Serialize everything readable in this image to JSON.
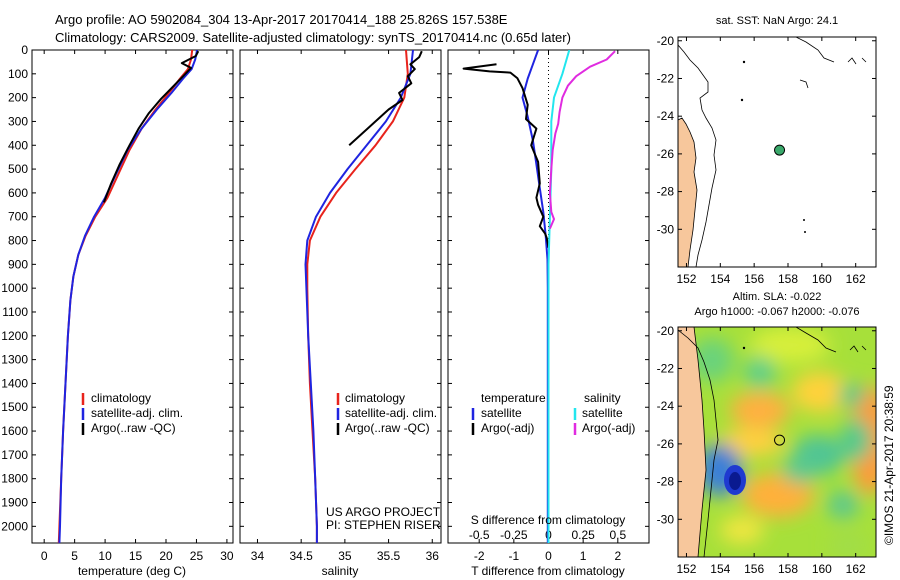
{
  "title": {
    "line1": "Argo profile: AO 5902084_304 13-Apr-2017 20170414_188 25.826S 157.538E",
    "line2": "Climatology: CARS2009. Satellite-adjusted climatology: synTS_20170414.nc (0.65d later)"
  },
  "credit": "©IMOS 21-Apr-2017 20:38:59",
  "colors": {
    "climatology": "#e8231c",
    "satellite": "#1f24e0",
    "argo": "#000000",
    "sat_salinity": "#22e6ee",
    "argo_salinity": "#e02be0",
    "land": "#f7c79c",
    "float_marker": "#3aa86b"
  },
  "chart_data": [
    {
      "type": "line",
      "id": "temperature",
      "xlabel": "temperature (deg C)",
      "xlim": [
        -2,
        31
      ],
      "ylim": [
        2070,
        0
      ],
      "xticks": [
        "0",
        "5",
        "10",
        "15",
        "20",
        "25",
        "30"
      ],
      "yticks": [
        "0",
        "100",
        "200",
        "300",
        "400",
        "500",
        "600",
        "700",
        "800",
        "900",
        "1000",
        "1100",
        "1200",
        "1300",
        "1400",
        "1500",
        "1600",
        "1700",
        "1800",
        "1900",
        "2000"
      ],
      "legend": [
        "climatology",
        "satellite-adj. clim.",
        "Argo(..raw -QC)"
      ],
      "series": [
        {
          "name": "climatology",
          "points": [
            [
              24.3,
              0
            ],
            [
              24.1,
              40
            ],
            [
              23.6,
              80
            ],
            [
              22.3,
              120
            ],
            [
              20.5,
              180
            ],
            [
              18.3,
              250
            ],
            [
              16.0,
              330
            ],
            [
              14.0,
              420
            ],
            [
              12.2,
              520
            ],
            [
              10.4,
              620
            ],
            [
              8.4,
              700
            ],
            [
              6.8,
              780
            ],
            [
              5.6,
              860
            ],
            [
              4.8,
              950
            ],
            [
              4.3,
              1050
            ],
            [
              3.9,
              1200
            ],
            [
              3.5,
              1400
            ],
            [
              3.1,
              1600
            ],
            [
              2.8,
              1800
            ],
            [
              2.5,
              2000
            ],
            [
              2.4,
              2070
            ]
          ]
        },
        {
          "name": "satellite-adj. clim.",
          "points": [
            [
              25.1,
              0
            ],
            [
              24.8,
              40
            ],
            [
              24.2,
              80
            ],
            [
              22.8,
              120
            ],
            [
              20.9,
              180
            ],
            [
              18.5,
              250
            ],
            [
              16.0,
              330
            ],
            [
              13.7,
              420
            ],
            [
              11.8,
              520
            ],
            [
              10.0,
              620
            ],
            [
              8.2,
              700
            ],
            [
              6.7,
              780
            ],
            [
              5.6,
              860
            ],
            [
              4.8,
              950
            ],
            [
              4.3,
              1050
            ],
            [
              3.9,
              1200
            ],
            [
              3.5,
              1400
            ],
            [
              3.1,
              1600
            ],
            [
              2.8,
              1800
            ],
            [
              2.6,
              2000
            ],
            [
              2.5,
              2070
            ]
          ]
        },
        {
          "name": "Argo(..raw -QC)",
          "points": [
            [
              25.3,
              5
            ],
            [
              24.9,
              25
            ],
            [
              22.6,
              55
            ],
            [
              24.1,
              75
            ],
            [
              23.0,
              105
            ],
            [
              21.5,
              145
            ],
            [
              19.2,
              205
            ],
            [
              17.2,
              265
            ],
            [
              15.5,
              330
            ],
            [
              14.0,
              400
            ],
            [
              12.4,
              480
            ],
            [
              11.0,
              560
            ],
            [
              9.8,
              640
            ]
          ]
        }
      ]
    },
    {
      "type": "line",
      "id": "salinity",
      "xlabel": "salinity",
      "xlim": [
        33.8,
        36.1
      ],
      "ylim": [
        2070,
        0
      ],
      "xticks": [
        "34",
        "34.5",
        "35",
        "35.5",
        "36"
      ],
      "legend": [
        "climatology",
        "satellite-adj. clim.",
        "Argo(..raw -QC)"
      ],
      "annotation": [
        "US ARGO PROJECT",
        "PI: STEPHEN RISER"
      ],
      "series": [
        {
          "name": "climatology",
          "points": [
            [
              35.7,
              0
            ],
            [
              35.72,
              100
            ],
            [
              35.68,
              200
            ],
            [
              35.55,
              300
            ],
            [
              35.35,
              400
            ],
            [
              35.12,
              500
            ],
            [
              34.9,
              600
            ],
            [
              34.72,
              700
            ],
            [
              34.6,
              800
            ],
            [
              34.57,
              900
            ],
            [
              34.57,
              1000
            ],
            [
              34.58,
              1200
            ],
            [
              34.6,
              1400
            ],
            [
              34.63,
              1600
            ],
            [
              34.66,
              1800
            ],
            [
              34.68,
              2000
            ],
            [
              34.68,
              2070
            ]
          ]
        },
        {
          "name": "satellite-adj. clim.",
          "points": [
            [
              35.78,
              0
            ],
            [
              35.75,
              100
            ],
            [
              35.64,
              200
            ],
            [
              35.47,
              300
            ],
            [
              35.25,
              400
            ],
            [
              35.03,
              500
            ],
            [
              34.83,
              600
            ],
            [
              34.67,
              700
            ],
            [
              34.57,
              800
            ],
            [
              34.55,
              900
            ],
            [
              34.56,
              1000
            ],
            [
              34.58,
              1200
            ],
            [
              34.61,
              1400
            ],
            [
              34.64,
              1600
            ],
            [
              34.66,
              1800
            ],
            [
              34.68,
              2000
            ],
            [
              34.68,
              2070
            ]
          ]
        },
        {
          "name": "Argo(..raw -QC)",
          "points": [
            [
              35.88,
              5
            ],
            [
              35.85,
              30
            ],
            [
              35.75,
              60
            ],
            [
              35.8,
              80
            ],
            [
              35.72,
              110
            ],
            [
              35.76,
              140
            ],
            [
              35.62,
              180
            ],
            [
              35.66,
              210
            ],
            [
              35.5,
              250
            ],
            [
              35.35,
              300
            ],
            [
              35.2,
              350
            ],
            [
              35.05,
              400
            ]
          ]
        }
      ]
    },
    {
      "type": "line",
      "id": "difference",
      "xlabel": "T difference from climatology",
      "xlabel2": "S difference from climatology",
      "xlim": [
        -2.9,
        2.9
      ],
      "ylim": [
        2070,
        0
      ],
      "xticks": [
        "-2",
        "-1",
        "0",
        "1",
        "2"
      ],
      "xticks2": [
        "-0.5",
        "-0.25",
        "0",
        "0.25",
        "0.5"
      ],
      "legend": {
        "temperature_header": "temperature",
        "salinity_header": "salinity",
        "entries": [
          "satellite",
          "Argo(-adj)",
          "satellite",
          "Argo(-adj)"
        ]
      },
      "series": [
        {
          "name": "satellite (temperature)",
          "points": [
            [
              -0.3,
              0
            ],
            [
              -0.45,
              60
            ],
            [
              -0.6,
              120
            ],
            [
              -0.75,
              200
            ],
            [
              -0.6,
              280
            ],
            [
              -0.45,
              380
            ],
            [
              -0.35,
              480
            ],
            [
              -0.25,
              580
            ],
            [
              -0.15,
              680
            ],
            [
              -0.08,
              780
            ],
            [
              -0.03,
              880
            ],
            [
              -0.02,
              1000
            ],
            [
              -0.02,
              1500
            ],
            [
              -0.02,
              2070
            ]
          ]
        },
        {
          "name": "Argo(-adj) (temperature)",
          "points": [
            [
              -1.5,
              60
            ],
            [
              -2.45,
              78
            ],
            [
              -1.7,
              90
            ],
            [
              -1.1,
              95
            ],
            [
              -0.9,
              118
            ],
            [
              -0.75,
              160
            ],
            [
              -0.6,
              230
            ],
            [
              -0.65,
              290
            ],
            [
              -0.35,
              330
            ],
            [
              -0.5,
              400
            ],
            [
              -0.3,
              470
            ],
            [
              -0.25,
              560
            ],
            [
              -0.35,
              620
            ],
            [
              -0.3,
              650
            ],
            [
              -0.15,
              700
            ],
            [
              -0.25,
              740
            ],
            [
              -0.1,
              770
            ],
            [
              -0.05,
              790
            ],
            [
              0.0,
              830
            ]
          ]
        },
        {
          "name": "satellite (salinity)",
          "points": [
            [
              0.15,
              0
            ],
            [
              0.1,
              100
            ],
            [
              0.04,
              200
            ],
            [
              0.02,
              300
            ],
            [
              0.02,
              400
            ],
            [
              0.02,
              500
            ],
            [
              0.01,
              700
            ],
            [
              0.0,
              900
            ],
            [
              0.0,
              1200
            ],
            [
              0.0,
              1600
            ],
            [
              0.0,
              2070
            ]
          ]
        },
        {
          "name": "Argo(-adj) (salinity)",
          "points": [
            [
              0.48,
              5
            ],
            [
              0.42,
              40
            ],
            [
              0.3,
              70
            ],
            [
              0.2,
              110
            ],
            [
              0.14,
              150
            ],
            [
              0.1,
              200
            ],
            [
              0.08,
              260
            ],
            [
              0.07,
              310
            ],
            [
              0.05,
              350
            ],
            [
              0.03,
              420
            ],
            [
              0.02,
              500
            ],
            [
              0.01,
              600
            ],
            [
              0.02,
              680
            ],
            [
              0.04,
              710
            ],
            [
              0.01,
              750
            ]
          ]
        }
      ]
    },
    {
      "type": "heatmap",
      "id": "sst-map",
      "title": "sat. SST: NaN Argo: 24.1",
      "xlim": [
        151.5,
        163.2
      ],
      "ylim": [
        -32,
        -19.8
      ],
      "xticks": [
        "152",
        "154",
        "156",
        "158",
        "160",
        "162"
      ],
      "yticks": [
        "-20",
        "-22",
        "-24",
        "-26",
        "-28",
        "-30"
      ],
      "float": {
        "lon": 157.5,
        "lat": -25.8
      }
    },
    {
      "type": "heatmap",
      "id": "sla-map",
      "title": "Altim. SLA: -0.022",
      "subtitle": "Argo h1000: -0.067 h2000: -0.076",
      "xlim": [
        151.5,
        163.2
      ],
      "ylim": [
        -32,
        -19.8
      ],
      "xticks": [
        "152",
        "154",
        "156",
        "158",
        "160",
        "162"
      ],
      "yticks": [
        "-20",
        "-22",
        "-24",
        "-26",
        "-28",
        "-30"
      ],
      "float": {
        "lon": 157.5,
        "lat": -25.8
      }
    }
  ]
}
